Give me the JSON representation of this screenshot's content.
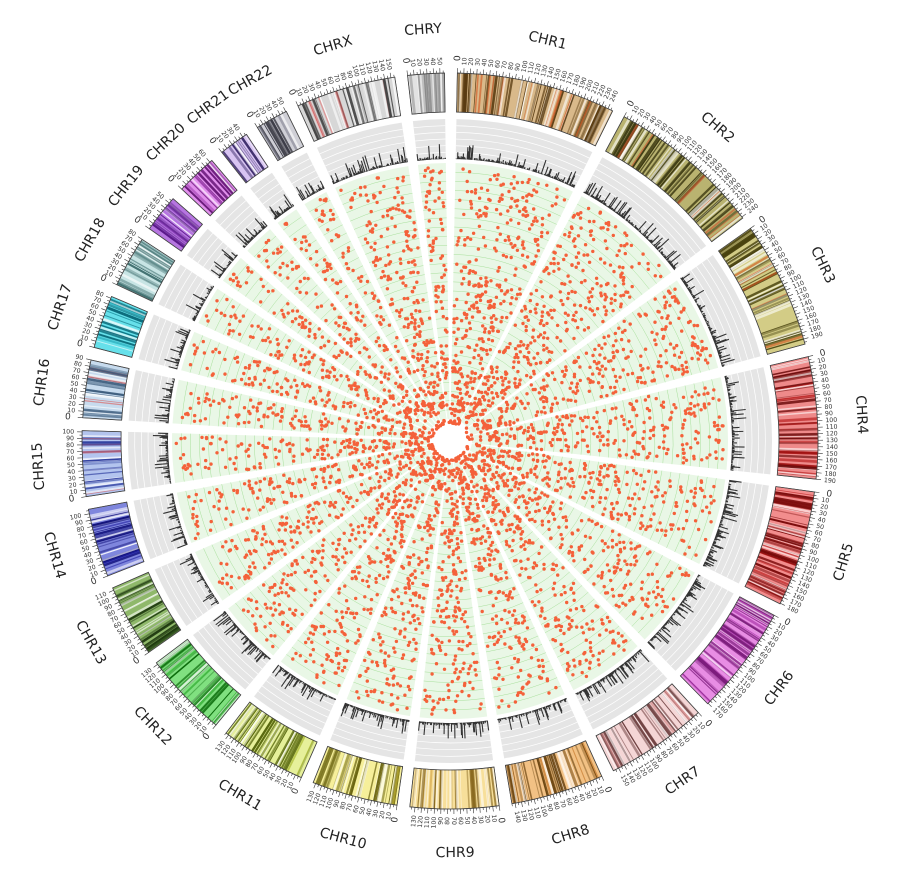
{
  "chromosomes": [
    {
      "name": "CHR1",
      "size": 248,
      "color": "#d9b98a",
      "dark": "#5a3c12",
      "accent": "#d2541e"
    },
    {
      "name": "CHR2",
      "size": 242,
      "color": "#b9b370",
      "dark": "#3d3a12",
      "accent": "#c9502a"
    },
    {
      "name": "CHR3",
      "size": 198,
      "color": "#d3cc86",
      "dark": "#4a4410",
      "accent": "#d2541e"
    },
    {
      "name": "CHR4",
      "size": 190,
      "color": "#ee8a8a",
      "dark": "#6a0a0a",
      "accent": "#b01010"
    },
    {
      "name": "CHR5",
      "size": 181,
      "color": "#f28d8d",
      "dark": "#7a0a0a",
      "accent": "#b01010"
    },
    {
      "name": "CHR6",
      "size": 171,
      "color": "#e88de4",
      "dark": "#7a1a7a",
      "accent": "#a02ca0"
    },
    {
      "name": "CHR7",
      "size": 159,
      "color": "#f5d6d6",
      "dark": "#6e4040",
      "accent": "#d08080"
    },
    {
      "name": "CHR8",
      "size": 145,
      "color": "#f2c184",
      "dark": "#6a4410",
      "accent": "#c07020"
    },
    {
      "name": "CHR9",
      "size": 138,
      "color": "#f7df9a",
      "dark": "#8a6a20",
      "accent": "#d0a040"
    },
    {
      "name": "CHR10",
      "size": 134,
      "color": "#f6ef9a",
      "dark": "#6a6410",
      "accent": "#c0b030"
    },
    {
      "name": "CHR11",
      "size": 135,
      "color": "#e6f09a",
      "dark": "#5a6a10",
      "accent": "#a0b020"
    },
    {
      "name": "CHR12",
      "size": 133,
      "color": "#80e080",
      "dark": "#0a6a0a",
      "accent": "#20a020"
    },
    {
      "name": "CHR13",
      "size": 114,
      "color": "#8fb86a",
      "dark": "#1f3a10",
      "accent": "#3a6a20"
    },
    {
      "name": "CHR14",
      "size": 107,
      "color": "#7f86dd",
      "dark": "#10107a",
      "accent": "#2020a0"
    },
    {
      "name": "CHR15",
      "size": 102,
      "color": "#b3c4ee",
      "dark": "#3040a0",
      "accent": "#d05050"
    },
    {
      "name": "CHR16",
      "size": 90,
      "color": "#c7dbee",
      "dark": "#3a5a7a",
      "accent": "#d05050"
    },
    {
      "name": "CHR17",
      "size": 83,
      "color": "#66e0ea",
      "dark": "#0a6a7a",
      "accent": "#1aa0b0"
    },
    {
      "name": "CHR18",
      "size": 80,
      "color": "#c7e4e4",
      "dark": "#3a6a6a",
      "accent": "#609090"
    },
    {
      "name": "CHR19",
      "size": 59,
      "color": "#b676e0",
      "dark": "#5a1a8a",
      "accent": "#8030b0"
    },
    {
      "name": "CHR20",
      "size": 64,
      "color": "#e190ec",
      "dark": "#6a1a7a",
      "accent": "#a040b0"
    },
    {
      "name": "CHR21",
      "size": 47,
      "color": "#d8c4f2",
      "dark": "#3a2a6a",
      "accent": "#8060b0"
    },
    {
      "name": "CHR22",
      "size": 51,
      "color": "#cfcfd6",
      "dark": "#3a3a44",
      "accent": "#808090"
    },
    {
      "name": "CHRX",
      "size": 156,
      "color": "#d7d7d7",
      "dark": "#444444",
      "accent": "#d06060"
    },
    {
      "name": "CHRY",
      "size": 57,
      "color": "#e2e2e2",
      "dark": "#888888",
      "accent": "#999999"
    }
  ],
  "colors": {
    "scatter_point": "#f4613a",
    "scatter_background": "#e9f7e6",
    "scatter_ring_line": "#9fdc92",
    "histogram_bars": "#333333",
    "histogram_background": "#e5e5e5",
    "center_hole": "#ffffff"
  },
  "tracks": [
    "ideogram",
    "histogram",
    "scatter"
  ]
}
